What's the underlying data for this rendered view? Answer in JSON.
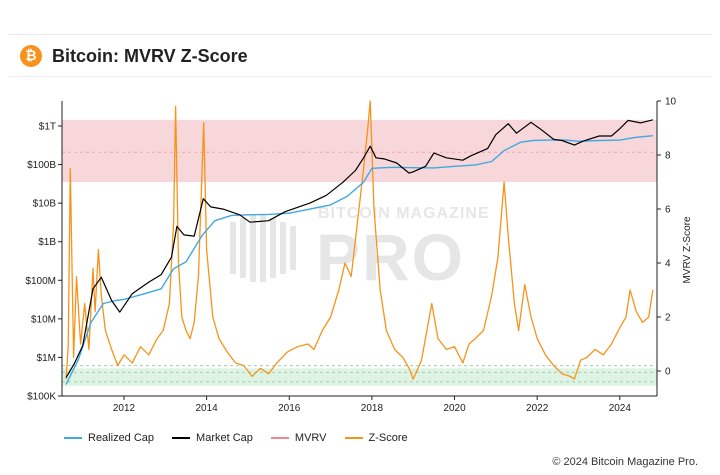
{
  "header": {
    "title": "Bitcoin: MVRV Z-Score",
    "logo_glyph": "₿"
  },
  "footer": {
    "copyright": "© 2024 Bitcoin Magazine Pro."
  },
  "watermark": {
    "line1": "BITCOIN MAGAZINE",
    "line2": "PRO"
  },
  "colors": {
    "realized_cap": "#3fa9e0",
    "market_cap": "#000000",
    "mvrv": "#f08c8c",
    "zscore": "#f7931a",
    "red_band": "#f8d7da",
    "green_band": "#dff3e4"
  },
  "chart_data": {
    "type": "line",
    "left_axis": {
      "scale": "log",
      "ticks": [
        "$1T",
        "$100B",
        "$10B",
        "$1B",
        "$100M",
        "$10M",
        "$1M",
        "$100K"
      ],
      "tick_values": [
        1000000000000.0,
        100000000000.0,
        10000000000.0,
        1000000000.0,
        100000000.0,
        10000000.0,
        1000000.0,
        100000.0
      ]
    },
    "right_axis": {
      "label": "MVRV Z-Score",
      "ticks": [
        "10",
        "8",
        "6",
        "4",
        "2",
        "0"
      ],
      "range": [
        -0.8,
        10
      ]
    },
    "x_axis": {
      "range": [
        2010.5,
        2024.9
      ],
      "ticks": [
        "2012",
        "2014",
        "2016",
        "2018",
        "2020",
        "2022",
        "2024"
      ],
      "tick_values": [
        2012,
        2014,
        2016,
        2018,
        2020,
        2022,
        2024
      ]
    },
    "bands": {
      "red_zscore": [
        7,
        9.3
      ],
      "green_zscore": [
        -0.55,
        0.1
      ]
    },
    "series": [
      {
        "name": "Realized Cap",
        "x": [
          2010.6,
          2010.9,
          2011.2,
          2011.5,
          2011.8,
          2012.0,
          2012.5,
          2012.9,
          2013.2,
          2013.5,
          2013.9,
          2014.2,
          2014.6,
          2015.0,
          2015.5,
          2016.0,
          2016.5,
          2017.0,
          2017.4,
          2017.8,
          2018.0,
          2018.5,
          2019.0,
          2019.5,
          2020.0,
          2020.5,
          2020.9,
          2021.2,
          2021.6,
          2021.9,
          2022.3,
          2022.7,
          2023.0,
          2023.5,
          2024.0,
          2024.4,
          2024.8
        ],
        "values": [
          200000,
          900000,
          8000000,
          25000000,
          30000000,
          32000000,
          45000000,
          60000000,
          200000000,
          300000000,
          1500000000,
          3500000000,
          4800000000,
          5000000000,
          5100000000,
          5500000000,
          7000000000,
          9000000000,
          15000000000,
          35000000000,
          80000000000,
          85000000000,
          83000000000,
          82000000000,
          90000000000,
          98000000000,
          120000000000,
          230000000000,
          380000000000,
          420000000000,
          430000000000,
          430000000000,
          400000000000,
          420000000000,
          430000000000,
          510000000000,
          560000000000
        ]
      },
      {
        "name": "Market Cap",
        "x": [
          2010.6,
          2010.8,
          2011.0,
          2011.25,
          2011.45,
          2011.7,
          2011.9,
          2012.2,
          2012.6,
          2012.9,
          2013.15,
          2013.28,
          2013.45,
          2013.7,
          2013.92,
          2014.1,
          2014.4,
          2014.8,
          2015.05,
          2015.5,
          2015.9,
          2016.5,
          2016.9,
          2017.3,
          2017.6,
          2017.8,
          2017.96,
          2018.1,
          2018.3,
          2018.6,
          2018.9,
          2019.0,
          2019.3,
          2019.5,
          2019.8,
          2020.2,
          2020.4,
          2020.8,
          2021.0,
          2021.3,
          2021.5,
          2021.85,
          2022.1,
          2022.4,
          2022.6,
          2022.9,
          2023.1,
          2023.5,
          2023.8,
          2024.0,
          2024.2,
          2024.5,
          2024.8
        ],
        "values": [
          300000,
          700000,
          2000000,
          60000000,
          120000000,
          30000000,
          15000000,
          45000000,
          90000000,
          140000000,
          400000000,
          2500000000,
          1500000000,
          1400000000,
          13000000000,
          8000000000,
          7000000000,
          5000000000,
          3200000000,
          3500000000,
          6000000000,
          10000000000,
          16000000000,
          35000000000,
          70000000000,
          150000000000,
          300000000000,
          150000000000,
          140000000000,
          110000000000,
          60000000000,
          65000000000,
          90000000000,
          200000000000,
          150000000000,
          130000000000,
          170000000000,
          260000000000,
          600000000000,
          1150000000000,
          650000000000,
          1250000000000,
          800000000000,
          450000000000,
          420000000000,
          320000000000,
          400000000000,
          550000000000,
          550000000000,
          850000000000,
          1400000000000,
          1200000000000,
          1450000000000
        ]
      },
      {
        "name": "MVRV",
        "x": [],
        "values": []
      },
      {
        "name": "Z-Score",
        "axis": "right",
        "x": [
          2010.6,
          2010.65,
          2010.7,
          2010.78,
          2010.85,
          2010.95,
          2011.05,
          2011.15,
          2011.25,
          2011.3,
          2011.38,
          2011.45,
          2011.55,
          2011.7,
          2011.85,
          2012.0,
          2012.2,
          2012.4,
          2012.6,
          2012.8,
          2012.95,
          2013.1,
          2013.2,
          2013.25,
          2013.32,
          2013.4,
          2013.5,
          2013.6,
          2013.7,
          2013.8,
          2013.88,
          2013.93,
          2014.0,
          2014.15,
          2014.3,
          2014.5,
          2014.7,
          2014.9,
          2015.1,
          2015.3,
          2015.5,
          2015.7,
          2015.95,
          2016.2,
          2016.45,
          2016.6,
          2016.8,
          2017.0,
          2017.2,
          2017.35,
          2017.5,
          2017.65,
          2017.8,
          2017.9,
          2017.96,
          2018.05,
          2018.2,
          2018.35,
          2018.55,
          2018.75,
          2018.9,
          2019.0,
          2019.2,
          2019.45,
          2019.6,
          2019.8,
          2020.0,
          2020.2,
          2020.35,
          2020.5,
          2020.7,
          2020.9,
          2021.05,
          2021.2,
          2021.3,
          2021.45,
          2021.55,
          2021.7,
          2021.85,
          2022.0,
          2022.2,
          2022.4,
          2022.6,
          2022.8,
          2022.9,
          2023.05,
          2023.2,
          2023.4,
          2023.6,
          2023.8,
          2024.0,
          2024.15,
          2024.25,
          2024.4,
          2024.55,
          2024.7,
          2024.8
        ],
        "values": [
          -0.3,
          0.9,
          7.5,
          0.5,
          3.5,
          1.0,
          2.5,
          0.8,
          3.8,
          2.2,
          4.5,
          2.8,
          1.5,
          0.8,
          0.2,
          0.6,
          0.3,
          0.9,
          0.6,
          1.2,
          1.5,
          2.5,
          5.5,
          9.8,
          4.0,
          2.0,
          1.5,
          1.2,
          1.8,
          3.5,
          7.0,
          9.2,
          4.5,
          2.0,
          1.2,
          0.7,
          0.3,
          0.2,
          -0.2,
          0.1,
          -0.1,
          0.3,
          0.7,
          0.9,
          1.0,
          0.8,
          1.5,
          2.0,
          3.0,
          4.0,
          3.5,
          5.5,
          7.5,
          9.0,
          10.0,
          6.0,
          3.0,
          1.5,
          0.8,
          0.5,
          0.1,
          -0.3,
          0.4,
          2.5,
          1.2,
          0.8,
          0.9,
          0.3,
          1.0,
          1.2,
          1.5,
          2.8,
          4.2,
          7.0,
          5.0,
          2.5,
          1.5,
          3.2,
          2.0,
          1.2,
          0.6,
          0.2,
          -0.1,
          -0.2,
          -0.3,
          0.4,
          0.5,
          0.8,
          0.6,
          1.0,
          1.6,
          2.0,
          3.0,
          2.2,
          1.8,
          2.0,
          3.0
        ]
      }
    ],
    "legend": [
      "Realized Cap",
      "Market Cap",
      "MVRV",
      "Z-Score"
    ],
    "legend_position": "bottom-left",
    "grid": false
  }
}
